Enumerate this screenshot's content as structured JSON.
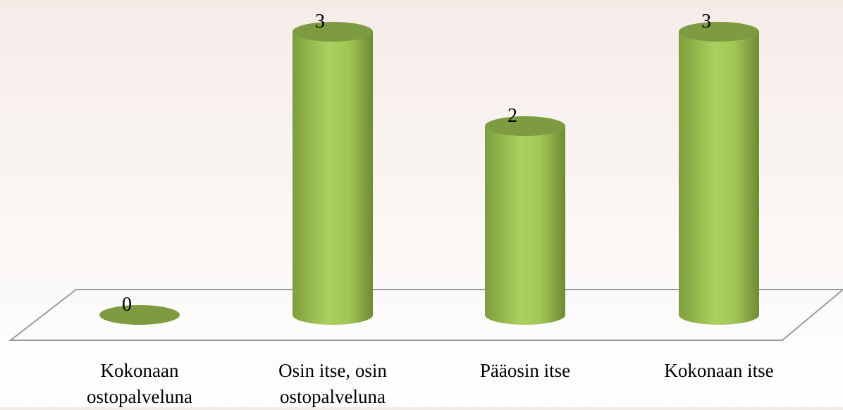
{
  "chart_data": {
    "type": "bar3d",
    "categories": [
      "Kokonaan ostopalveluna",
      "Osin itse, osin ostopalveluna",
      "Pääosin itse",
      "Kokonaan itse"
    ],
    "values": [
      0,
      3,
      2,
      3
    ],
    "color": "#9bc250"
  }
}
